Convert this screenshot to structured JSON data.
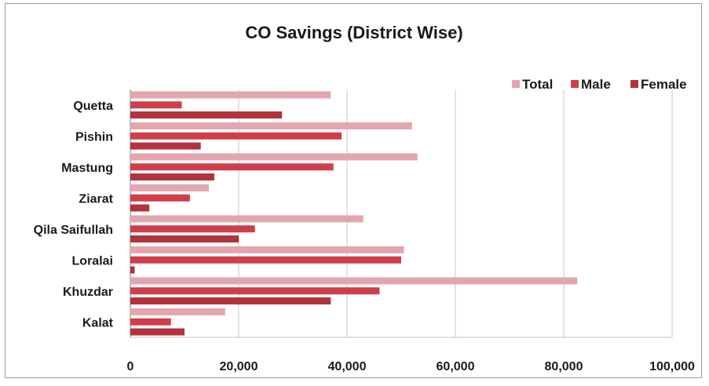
{
  "chart_data": {
    "type": "bar",
    "orientation": "horizontal",
    "title": "CO Savings (District Wise)",
    "xlabel": "",
    "ylabel": "",
    "categories": [
      "Quetta",
      "Pishin",
      "Mastung",
      "Ziarat",
      "Qila Saifullah",
      "Loralai",
      "Khuzdar",
      "Kalat"
    ],
    "series": [
      {
        "name": "Total",
        "color": "#e3a6af",
        "values": [
          37000,
          52000,
          53000,
          14500,
          43000,
          50500,
          82500,
          17500
        ]
      },
      {
        "name": "Male",
        "color": "#cf3f4a",
        "values": [
          9500,
          39000,
          37500,
          11000,
          23000,
          50000,
          46000,
          7500
        ]
      },
      {
        "name": "Female",
        "color": "#b0333d",
        "values": [
          28000,
          13000,
          15500,
          3500,
          20000,
          800,
          37000,
          10000
        ]
      }
    ],
    "xlim": [
      0,
      100000
    ],
    "xticks": [
      0,
      20000,
      40000,
      60000,
      80000,
      100000
    ],
    "xtick_labels": [
      "0",
      "20,000",
      "40,000",
      "60,000",
      "80,000",
      "100,000"
    ],
    "grid": "vertical",
    "legend_position": "top-right"
  }
}
